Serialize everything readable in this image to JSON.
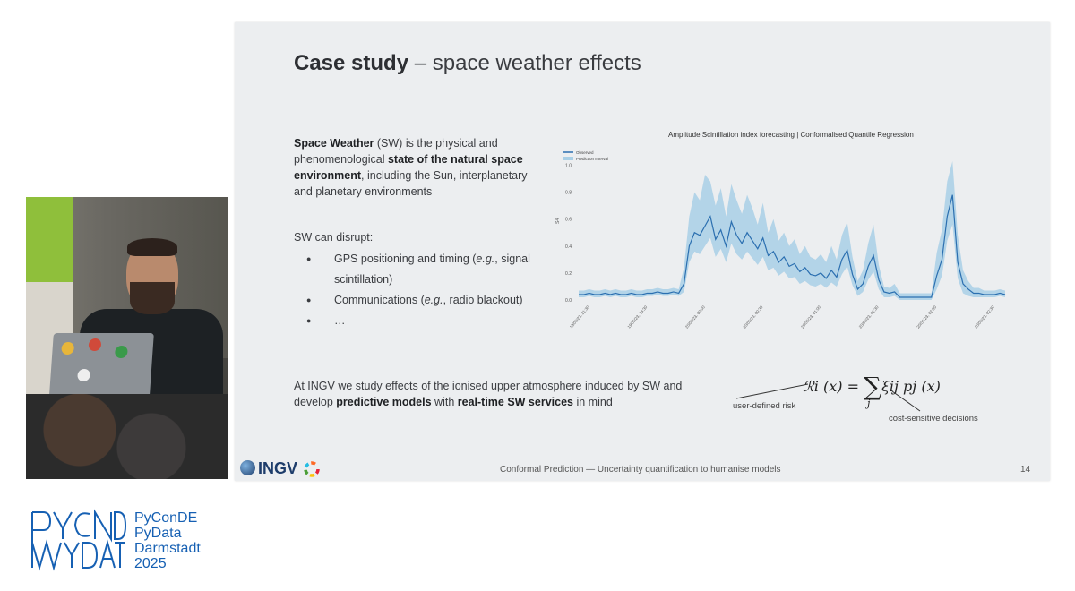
{
  "slide": {
    "title_bold": "Case study",
    "title_rest": " – space weather effects",
    "intro": {
      "term": "Space Weather",
      "abbr": " (SW) is the physical and phenomenological ",
      "bold": "state of the natural space environment",
      "rest": ", including the Sun, interplanetary and planetary environments"
    },
    "disrupt_heading": "SW can disrupt:",
    "bullets": {
      "b1_pre": "GPS positioning and timing (",
      "b1_eg": "e.g.",
      "b1_post": ", signal scintillation)",
      "b2_pre": "Communications (",
      "b2_eg": "e.g.",
      "b2_post": ", radio blackout)",
      "b3": "…"
    },
    "bottom": {
      "p1": "At INGV we study effects of the ionised upper atmosphere induced by SW and develop ",
      "b1": "predictive models",
      "p2": " with ",
      "b2": "real-time SW services",
      "p3": " in mind"
    },
    "formula": {
      "lhs": "ℛi (x) = ",
      "sum": "∑",
      "rhs": "ξij pj (x)",
      "sub_j": "j",
      "label_risk": "user-defined risk",
      "label_cost": "cost-sensitive decisions"
    },
    "footer": {
      "logo_text": "INGV",
      "text": "Conformal Prediction — Uncertainty quantification to humanise models",
      "page": "14"
    }
  },
  "event": {
    "line1": "PyConDE",
    "line2": "PyData",
    "line3": "Darmstadt",
    "line4": "2025"
  },
  "chart_data": {
    "type": "line",
    "title": "Amplitude Scintillation index forecasting | Conformalised Quantile Regression",
    "ylabel": "S4",
    "xlabel": "",
    "ylim": [
      0,
      1.05
    ],
    "yticks": [
      "0.0",
      "0.2",
      "0.4",
      "0.6",
      "0.8",
      "1.0"
    ],
    "xtick_labels": [
      "19/05/23, 21:30",
      "19/05/23, 23:30",
      "20/05/23, 00:00",
      "20/05/23, 00:30",
      "20/05/23, 01:00",
      "20/05/23, 01:30",
      "20/05/23, 02:00",
      "20/05/23, 02:30"
    ],
    "legend": [
      "Observed",
      "Prediction Interval"
    ],
    "colors": {
      "observed": "#2b6fb0",
      "interval": "#a9cfe6"
    },
    "series": [
      {
        "name": "Observed",
        "values": [
          0.04,
          0.04,
          0.05,
          0.04,
          0.04,
          0.05,
          0.04,
          0.05,
          0.04,
          0.04,
          0.05,
          0.04,
          0.04,
          0.05,
          0.05,
          0.06,
          0.05,
          0.05,
          0.06,
          0.05,
          0.12,
          0.4,
          0.5,
          0.48,
          0.55,
          0.62,
          0.45,
          0.52,
          0.4,
          0.58,
          0.48,
          0.42,
          0.5,
          0.44,
          0.38,
          0.46,
          0.33,
          0.36,
          0.28,
          0.32,
          0.25,
          0.27,
          0.21,
          0.24,
          0.19,
          0.18,
          0.2,
          0.16,
          0.22,
          0.17,
          0.3,
          0.37,
          0.19,
          0.08,
          0.12,
          0.25,
          0.33,
          0.15,
          0.06,
          0.05,
          0.06,
          0.02,
          0.02,
          0.02,
          0.02,
          0.02,
          0.02,
          0.02,
          0.18,
          0.3,
          0.62,
          0.78,
          0.28,
          0.12,
          0.08,
          0.05,
          0.05,
          0.04,
          0.04,
          0.04,
          0.05,
          0.04
        ]
      },
      {
        "name": "Prediction Interval",
        "lower": [
          0.02,
          0.02,
          0.03,
          0.02,
          0.02,
          0.03,
          0.02,
          0.03,
          0.02,
          0.02,
          0.03,
          0.02,
          0.02,
          0.03,
          0.03,
          0.04,
          0.03,
          0.03,
          0.04,
          0.03,
          0.06,
          0.28,
          0.36,
          0.34,
          0.4,
          0.46,
          0.32,
          0.38,
          0.28,
          0.42,
          0.34,
          0.3,
          0.36,
          0.31,
          0.26,
          0.32,
          0.22,
          0.24,
          0.18,
          0.21,
          0.16,
          0.17,
          0.12,
          0.14,
          0.11,
          0.1,
          0.12,
          0.09,
          0.13,
          0.1,
          0.19,
          0.25,
          0.11,
          0.03,
          0.06,
          0.15,
          0.21,
          0.08,
          0.02,
          0.02,
          0.03,
          0.0,
          0.0,
          0.0,
          0.0,
          0.0,
          0.0,
          0.0,
          0.08,
          0.18,
          0.44,
          0.56,
          0.16,
          0.05,
          0.03,
          0.02,
          0.02,
          0.02,
          0.02,
          0.02,
          0.03,
          0.02
        ],
        "upper": [
          0.07,
          0.07,
          0.08,
          0.07,
          0.07,
          0.08,
          0.07,
          0.08,
          0.07,
          0.07,
          0.08,
          0.07,
          0.07,
          0.08,
          0.08,
          0.09,
          0.08,
          0.08,
          0.09,
          0.08,
          0.24,
          0.62,
          0.8,
          0.74,
          0.93,
          0.88,
          0.7,
          0.83,
          0.62,
          0.86,
          0.74,
          0.64,
          0.78,
          0.68,
          0.56,
          0.72,
          0.5,
          0.6,
          0.44,
          0.5,
          0.4,
          0.45,
          0.34,
          0.4,
          0.32,
          0.3,
          0.34,
          0.28,
          0.4,
          0.3,
          0.48,
          0.58,
          0.32,
          0.14,
          0.22,
          0.42,
          0.56,
          0.26,
          0.1,
          0.09,
          0.12,
          0.05,
          0.05,
          0.05,
          0.05,
          0.05,
          0.05,
          0.05,
          0.35,
          0.52,
          0.88,
          1.03,
          0.48,
          0.22,
          0.14,
          0.09,
          0.09,
          0.07,
          0.07,
          0.07,
          0.08,
          0.07
        ]
      }
    ]
  }
}
